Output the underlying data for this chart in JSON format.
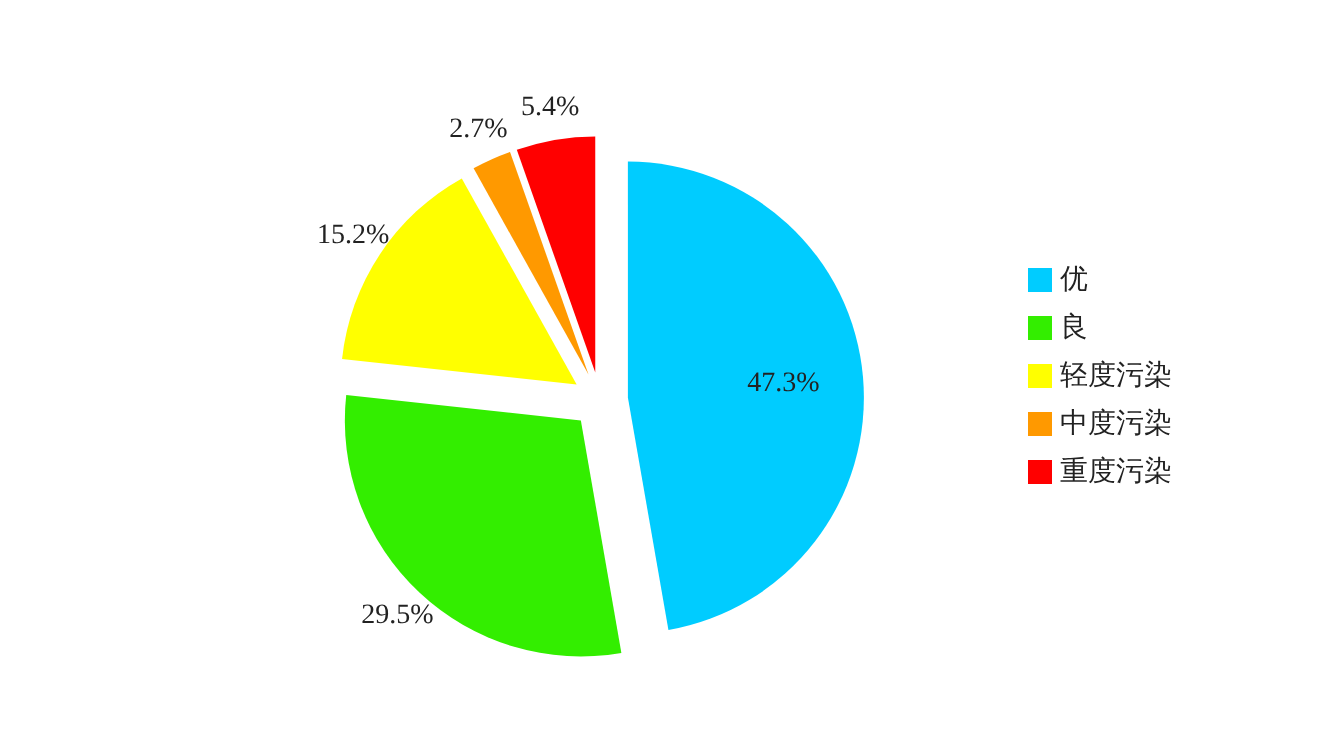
{
  "chart_data": {
    "type": "pie",
    "categories": [
      "优",
      "良",
      "轻度污染",
      "中度污染",
      "重度污染"
    ],
    "values": [
      47.3,
      29.5,
      15.2,
      2.7,
      5.4
    ],
    "colors": [
      "#00ccff",
      "#33ee00",
      "#ffff00",
      "#ff9900",
      "#ff0000"
    ],
    "value_labels": [
      "47.3%",
      "29.5%",
      "15.2%",
      "2.7%",
      "5.4%"
    ],
    "legend": "right"
  }
}
